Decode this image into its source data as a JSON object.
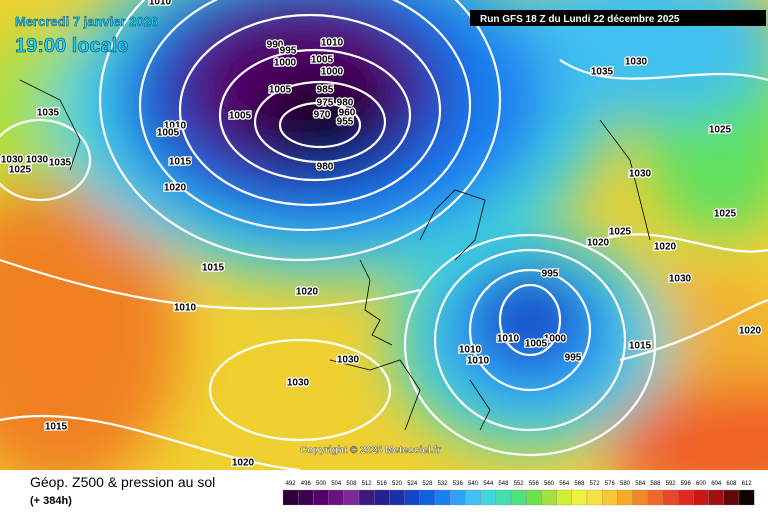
{
  "header": {
    "date": "Mercredi 7 janvier 2026",
    "time": "19:00 locale",
    "run": "Run GFS 18 Z du Lundi 22 décembre 2025"
  },
  "copyright": "Copyright © 2025 Meteociel.fr",
  "footer": {
    "title": "Géop. Z500 & pression au sol",
    "lead": "(+ 384h)"
  },
  "legend": {
    "values": [
      492,
      496,
      500,
      504,
      508,
      512,
      516,
      520,
      524,
      528,
      532,
      536,
      540,
      544,
      548,
      552,
      556,
      560,
      564,
      568,
      572,
      576,
      580,
      584,
      588,
      592,
      596,
      600,
      604,
      608,
      612
    ],
    "colors": [
      "#2a0036",
      "#3d0050",
      "#55006a",
      "#6b1082",
      "#7e2a96",
      "#3a1a80",
      "#24208e",
      "#1c2ea8",
      "#1444c8",
      "#1060e0",
      "#1a80f0",
      "#30a0f8",
      "#40c0f0",
      "#40d8e0",
      "#40e0b0",
      "#50e080",
      "#70e050",
      "#a0e040",
      "#d0f030",
      "#f0f040",
      "#f8e040",
      "#f8c830",
      "#f8a828",
      "#f08828",
      "#f06828",
      "#e84828",
      "#e02820",
      "#c81818",
      "#a01010",
      "#600808",
      "#100000"
    ]
  },
  "isobars": [
    1010,
    990,
    995,
    1010,
    1000,
    1005,
    1000,
    1005,
    985,
    975,
    980,
    970,
    960,
    955,
    1005,
    1010,
    1005,
    1035,
    1030,
    1030,
    1035,
    1025,
    1015,
    980,
    1020,
    1015,
    1010,
    1020,
    1035,
    1030,
    1025,
    1030,
    1025,
    1025,
    1020,
    1020,
    1030,
    995,
    1020,
    1015,
    1000,
    1010,
    1005,
    1010,
    1010,
    995,
    1030,
    1030,
    1015,
    1020
  ]
}
